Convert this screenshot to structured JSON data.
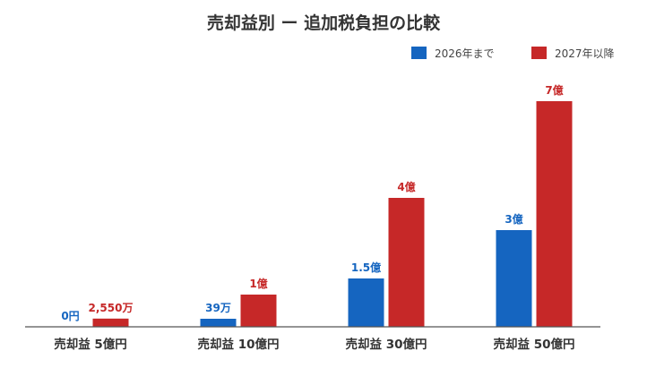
{
  "chart_data": {
    "type": "bar",
    "title": "売却益別 ー 追加税負担の比較",
    "categories": [
      "売却益 5億円",
      "売却益 10億円",
      "売却益 30億円",
      "売却益 50億円"
    ],
    "series": [
      {
        "name": "2026年まで",
        "color": "#1565c0",
        "values": [
          0,
          390000,
          150000000,
          300000000
        ],
        "value_labels": [
          "0円",
          "39万",
          "1.5億",
          "3億"
        ]
      },
      {
        "name": "2027年以降",
        "color": "#c62828",
        "values": [
          25500000,
          100000000,
          400000000,
          700000000
        ],
        "value_labels": [
          "2,550万",
          "1億",
          "4億",
          "7億"
        ]
      }
    ],
    "ylim": [
      0,
      700000000
    ],
    "grid": false,
    "legend_position": "top-right",
    "xlabel": "",
    "ylabel": ""
  }
}
